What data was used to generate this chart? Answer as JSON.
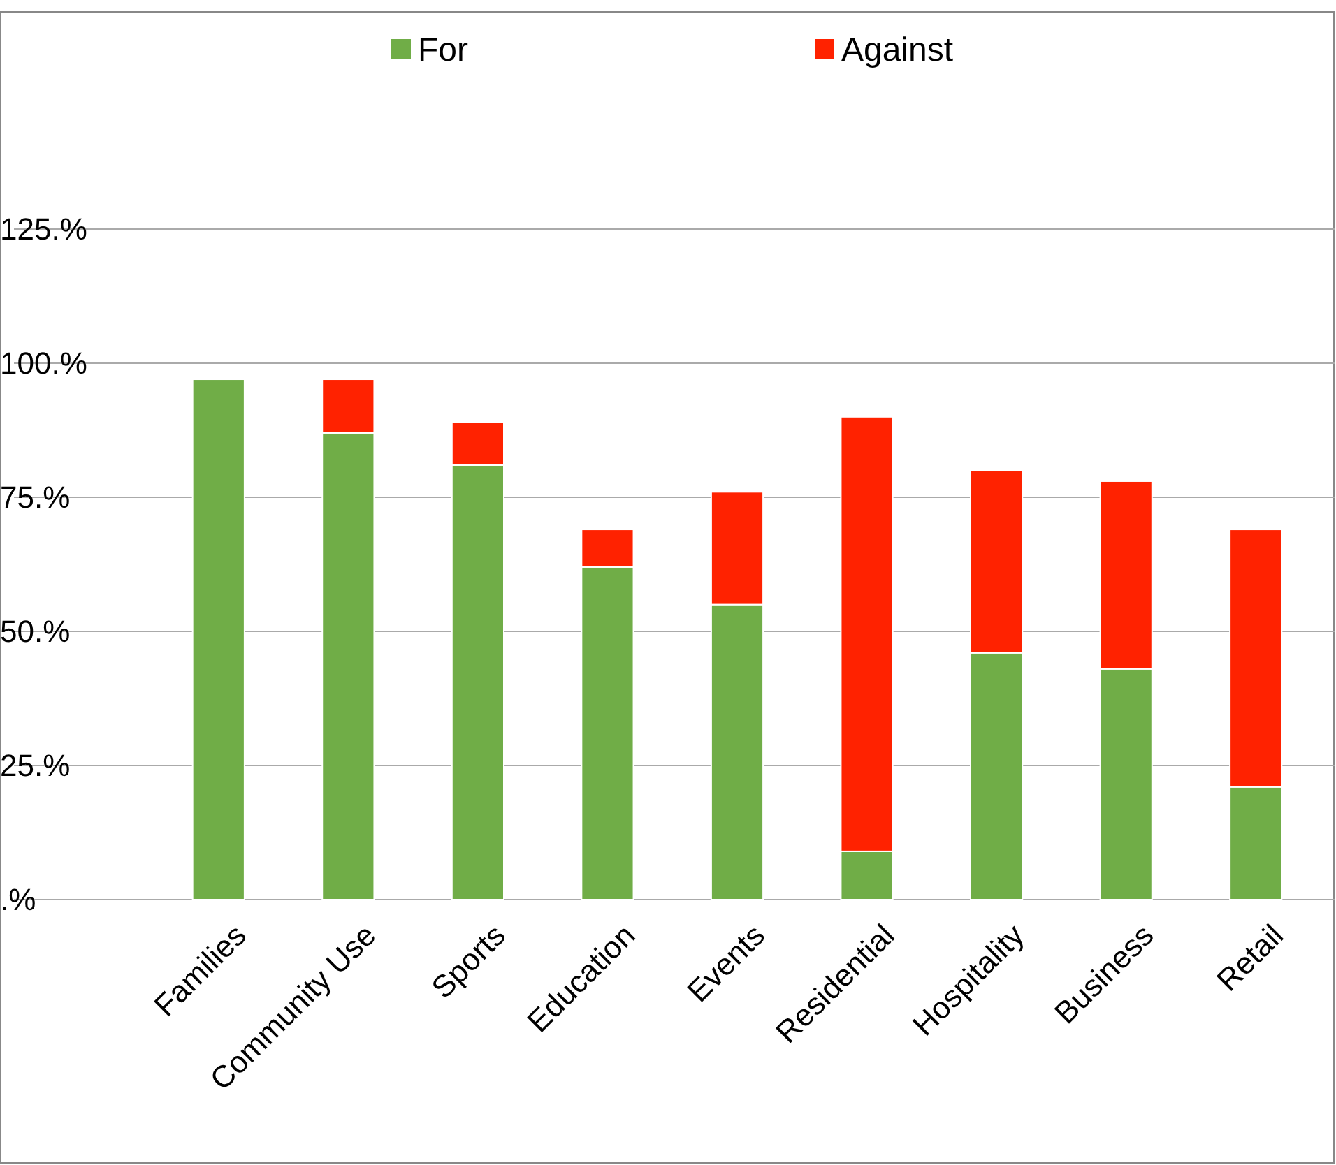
{
  "chart_data": {
    "type": "bar",
    "stacked": true,
    "categories": [
      "Families",
      "Community Use",
      "Sports",
      "Education",
      "Events",
      "Residential",
      "Hospitality",
      "Business",
      "Retail"
    ],
    "series": [
      {
        "name": "For",
        "color": "#70ad47",
        "values": [
          97,
          87,
          81,
          62,
          55,
          9,
          46,
          43,
          21
        ]
      },
      {
        "name": "Against",
        "color": "#ff2200",
        "values": [
          0,
          10,
          8,
          7,
          21,
          81,
          34,
          35,
          48
        ]
      }
    ],
    "ylim": [
      0,
      125
    ],
    "yticks": [
      {
        "value": 0,
        "label": ".%"
      },
      {
        "value": 25,
        "label": "25.%"
      },
      {
        "value": 50,
        "label": "50.%"
      },
      {
        "value": 75,
        "label": "75.%"
      },
      {
        "value": 100,
        "label": "100.%"
      },
      {
        "value": 125,
        "label": "125.%"
      }
    ],
    "grid": "y",
    "legend": "top"
  }
}
